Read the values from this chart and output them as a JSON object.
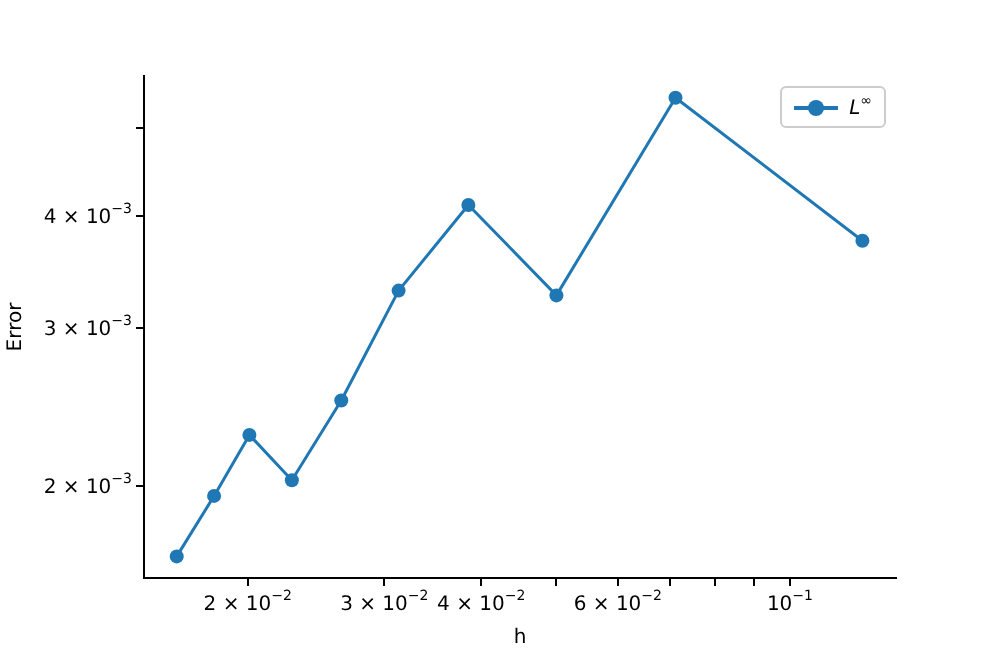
{
  "chart_data": {
    "type": "line",
    "xlabel": "h",
    "ylabel": "Error",
    "log": "xy",
    "grid": false,
    "legend": "top right",
    "marker": "circle",
    "line_style": "solid",
    "x": [
      0.0162,
      0.0181,
      0.0201,
      0.0228,
      0.0264,
      0.0313,
      0.0385,
      0.05,
      0.0712,
      0.124
    ],
    "series": [
      {
        "name": "L$^{∞}$",
        "color": "#1f77b4",
        "values": [
          0.00167,
          0.00195,
          0.00228,
          0.00203,
          0.00249,
          0.0033,
          0.00411,
          0.00326,
          0.00541,
          0.00375
        ]
      }
    ],
    "xlim": [
      0.0147,
      0.137
    ],
    "ylim": [
      0.00158,
      0.00572
    ],
    "xticks": [
      {
        "value": 0.02,
        "label": "2 × 10$^{−2}$"
      },
      {
        "value": 0.03,
        "label": "3 × 10$^{−2}$"
      },
      {
        "value": 0.04,
        "label": "4 × 10$^{−2}$"
      },
      {
        "value": 0.05,
        "label": null
      },
      {
        "value": 0.06,
        "label": "6 × 10$^{−2}$"
      },
      {
        "value": 0.07,
        "label": null
      },
      {
        "value": 0.08,
        "label": null
      },
      {
        "value": 0.09,
        "label": null
      },
      {
        "value": 0.1,
        "label": "10$^{−1}$"
      }
    ],
    "yticks": [
      {
        "value": 0.002,
        "label": "2 × 10$^{−3}$"
      },
      {
        "value": 0.003,
        "label": "3 × 10$^{−3}$"
      },
      {
        "value": 0.004,
        "label": "4 × 10$^{−3}$"
      },
      {
        "value": 0.005,
        "label": null
      }
    ]
  }
}
